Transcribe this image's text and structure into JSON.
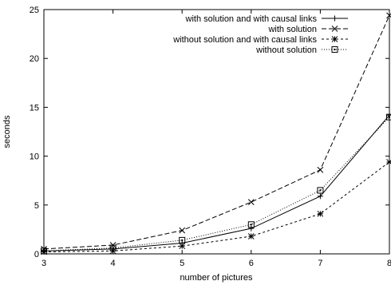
{
  "chart_data": {
    "type": "line",
    "title": "",
    "xlabel": "number of pictures",
    "ylabel": "seconds",
    "xlim": [
      3,
      8
    ],
    "ylim": [
      0,
      25
    ],
    "xticks": [
      3,
      4,
      5,
      6,
      7,
      8
    ],
    "yticks": [
      0,
      5,
      10,
      15,
      20,
      25
    ],
    "grid": false,
    "legend_position": "top-right",
    "x": [
      3,
      4,
      5,
      6,
      7,
      8
    ],
    "series": [
      {
        "name": "with solution and with causal links",
        "values": [
          0.3,
          0.5,
          1.1,
          2.6,
          5.9,
          14.2
        ],
        "marker": "plus",
        "dash": "solid",
        "color": "#000000"
      },
      {
        "name": "with solution",
        "values": [
          0.5,
          0.9,
          2.4,
          5.3,
          8.6,
          24.4
        ],
        "marker": "cross",
        "dash": "dashed",
        "color": "#000000"
      },
      {
        "name": "without solution and with causal links",
        "values": [
          0.2,
          0.3,
          0.8,
          1.8,
          4.1,
          9.4
        ],
        "marker": "star",
        "dash": "short-dash",
        "color": "#000000"
      },
      {
        "name": "without solution",
        "values": [
          0.3,
          0.6,
          1.4,
          3.0,
          6.5,
          14.0
        ],
        "marker": "square",
        "dash": "dotted",
        "color": "#000000"
      }
    ]
  }
}
